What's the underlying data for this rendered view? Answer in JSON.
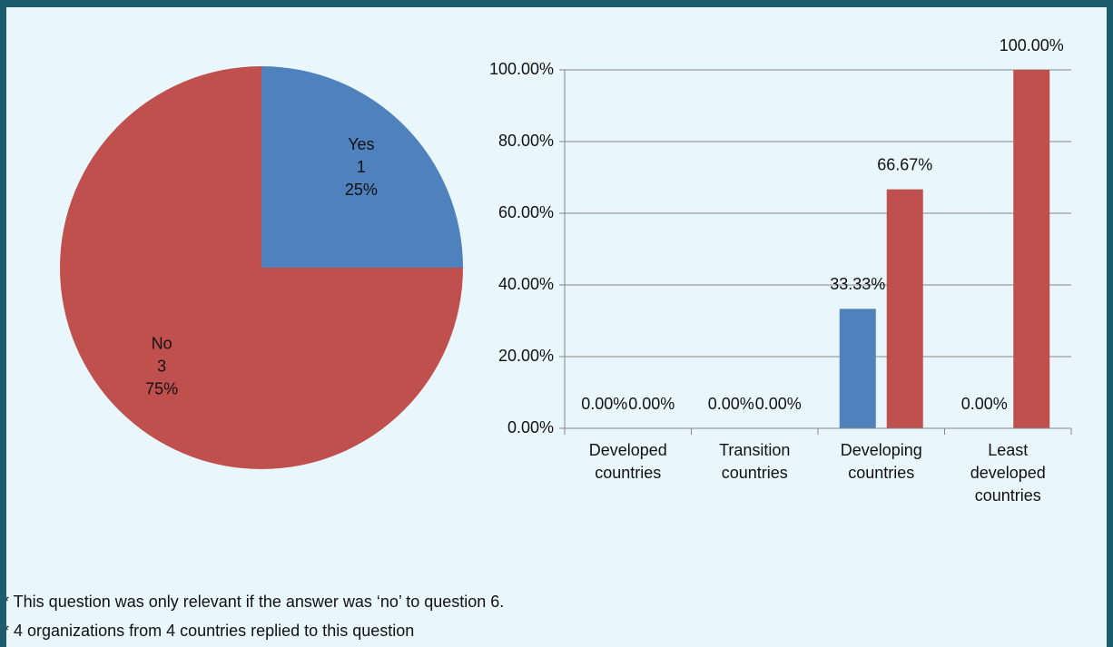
{
  "chart_data": [
    {
      "type": "pie",
      "categories": [
        "Yes",
        "No"
      ],
      "counts": [
        1,
        3
      ],
      "values": [
        25,
        75
      ],
      "value_labels": [
        "25%",
        "75%"
      ],
      "colors": [
        "#4f81bd",
        "#c0504d"
      ]
    },
    {
      "type": "bar",
      "categories": [
        "Developed countries",
        "Transition countries",
        "Developing countries",
        "Least developed countries"
      ],
      "series": [
        {
          "color": "#4f81bd",
          "values": [
            0,
            0,
            33.33,
            0
          ],
          "value_labels": [
            "0.00%",
            "0.00%",
            "33.33%",
            "0.00%"
          ]
        },
        {
          "color": "#c0504d",
          "values": [
            0,
            0,
            66.67,
            100
          ],
          "value_labels": [
            "0.00%",
            "0.00%",
            "66.67%",
            "100.00%"
          ]
        }
      ],
      "ylim": [
        0,
        100
      ],
      "yticks": [
        {
          "value": 0,
          "label": "0.00%"
        },
        {
          "value": 20,
          "label": "20.00%"
        },
        {
          "value": 40,
          "label": "40.00%"
        },
        {
          "value": 60,
          "label": "60.00%"
        },
        {
          "value": 80,
          "label": "80.00%"
        },
        {
          "value": 100,
          "label": "100.00%"
        }
      ],
      "grid": true
    }
  ],
  "notes": [
    "* This question was only relevant if the answer was ‘no’ to question 6.",
    "* 4 organizations from 4 countries replied to this question"
  ]
}
